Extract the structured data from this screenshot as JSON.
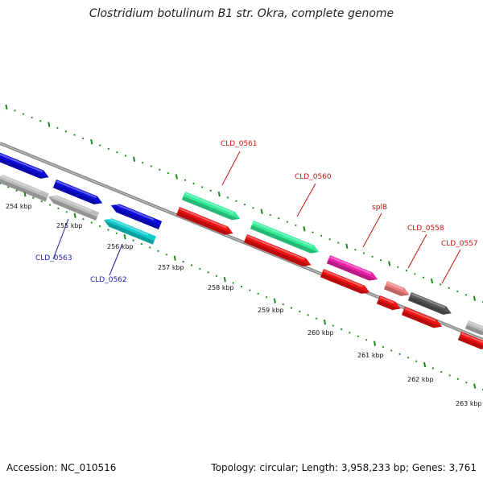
{
  "title": "Clostridium botulinum B1 str. Okra, complete genome",
  "footer": {
    "accession": "Accession: NC_010516",
    "summary": "Topology: circular; Length: 3,958,233 bp; Genes: 3,761"
  },
  "colors": {
    "backbone": "#8a8a8a",
    "ruler": "#1e8a1e",
    "forward_label": "#cc1111",
    "reverse_label": "#1a1aaa"
  },
  "ruler": {
    "unit": "kbp",
    "ticks": [
      "254 kbp",
      "255 kbp",
      "256 kbp",
      "257 kbp",
      "258 kbp",
      "259 kbp",
      "260 kbp",
      "261 kbp",
      "262 kbp",
      "263 kbp"
    ]
  },
  "labels": [
    {
      "text": "CLD_0563",
      "strand": "reverse"
    },
    {
      "text": "CLD_0562",
      "strand": "reverse"
    },
    {
      "text": "CLD_0561",
      "strand": "forward"
    },
    {
      "text": "CLD_0560",
      "strand": "forward"
    },
    {
      "text": "splB",
      "strand": "forward"
    },
    {
      "text": "CLD_0558",
      "strand": "forward"
    },
    {
      "text": "CLD_0557",
      "strand": "forward"
    }
  ],
  "features": [
    {
      "track": "outer-forward",
      "color": "#0b0bdd",
      "direction": "right"
    },
    {
      "track": "outer-forward",
      "color": "#0b0bdd",
      "direction": "right"
    },
    {
      "track": "outer-forward",
      "color": "#0b0bdd",
      "direction": "left"
    },
    {
      "track": "outer-forward",
      "color": "#33ee99",
      "direction": "right"
    },
    {
      "track": "outer-forward",
      "color": "#33ee99",
      "direction": "right"
    },
    {
      "track": "outer-forward",
      "color": "#ee22aa",
      "direction": "right"
    },
    {
      "track": "outer-forward",
      "color": "#f08080",
      "direction": "right"
    },
    {
      "track": "outer-forward",
      "color": "#555555",
      "direction": "right"
    },
    {
      "track": "outer-forward",
      "color": "#bbbbbb",
      "direction": "right"
    },
    {
      "track": "inner-reverse",
      "color": "#bdbdbd",
      "direction": "left"
    },
    {
      "track": "inner-reverse",
      "color": "#bdbdbd",
      "direction": "left"
    },
    {
      "track": "inner-reverse",
      "color": "#11cccc",
      "direction": "left"
    },
    {
      "track": "inner-reverse",
      "color": "#ee1111",
      "direction": "right"
    },
    {
      "track": "inner-reverse",
      "color": "#ee1111",
      "direction": "right"
    },
    {
      "track": "inner-reverse",
      "color": "#ee1111",
      "direction": "right"
    },
    {
      "track": "inner-reverse",
      "color": "#ee1111",
      "direction": "right"
    },
    {
      "track": "inner-reverse",
      "color": "#ee1111",
      "direction": "right"
    },
    {
      "track": "inner-reverse",
      "color": "#ee1111",
      "direction": "right"
    }
  ]
}
